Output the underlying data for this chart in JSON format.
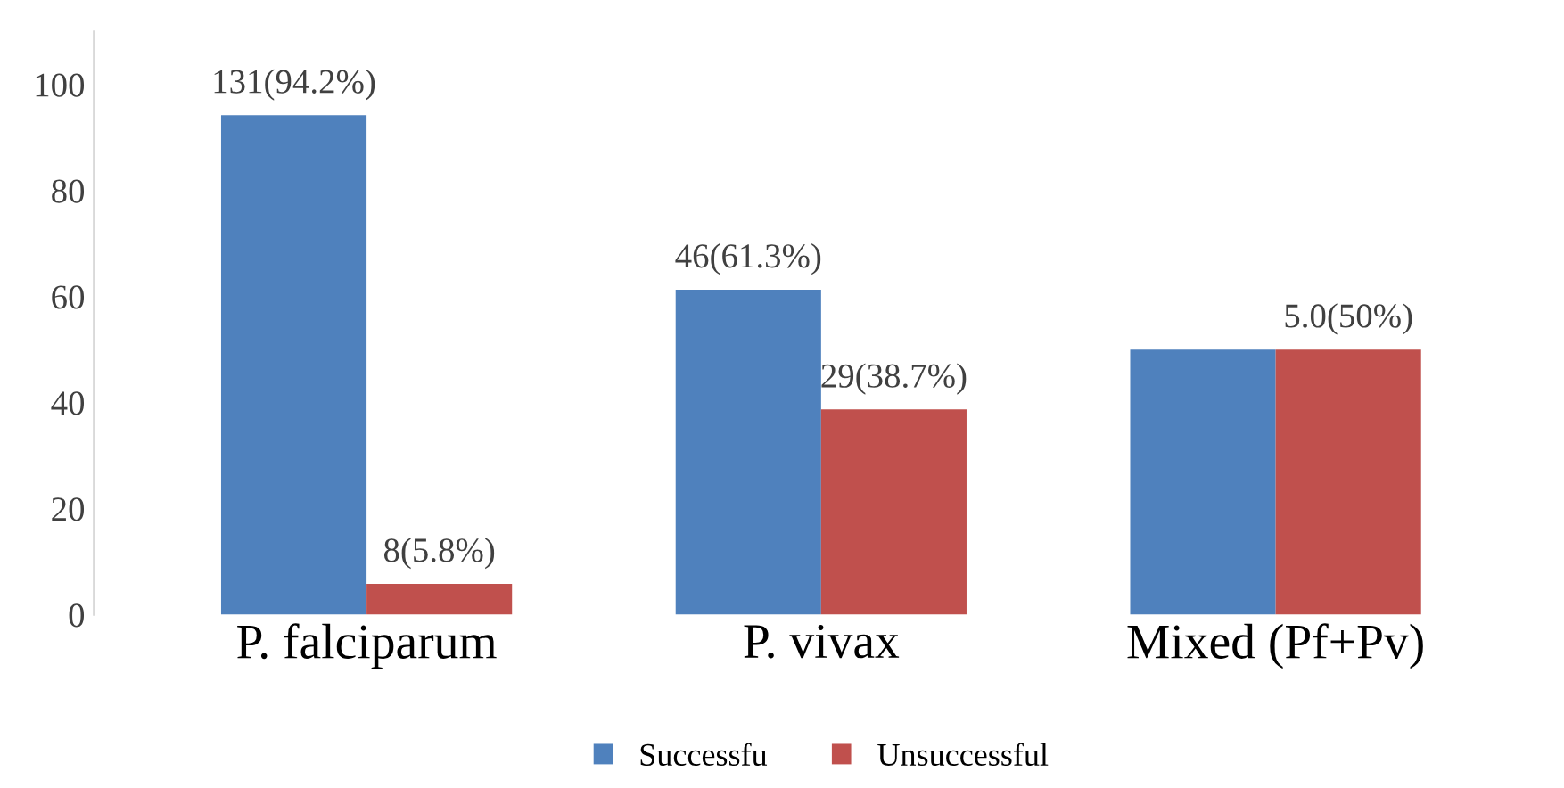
{
  "chart_data": {
    "type": "bar",
    "categories": [
      "P. falciparum",
      "P. vivax",
      "Mixed (Pf+Pv)"
    ],
    "series": [
      {
        "name": "Successfu",
        "color": "#4f81bd",
        "values": [
          94.2,
          61.3,
          50
        ],
        "value_labels": [
          "131(94.2%)",
          "46(61.3%)",
          null
        ]
      },
      {
        "name": "Unsuccessful",
        "color": "#c0504d",
        "values": [
          5.8,
          38.7,
          50
        ],
        "value_labels": [
          "8(5.8%)",
          "29(38.7%)",
          "5.0(50%)"
        ]
      }
    ],
    "ylim": [
      0,
      110
    ],
    "yticks": [
      0,
      20,
      40,
      60,
      80,
      100
    ],
    "grid": false,
    "legend": "bottom"
  }
}
